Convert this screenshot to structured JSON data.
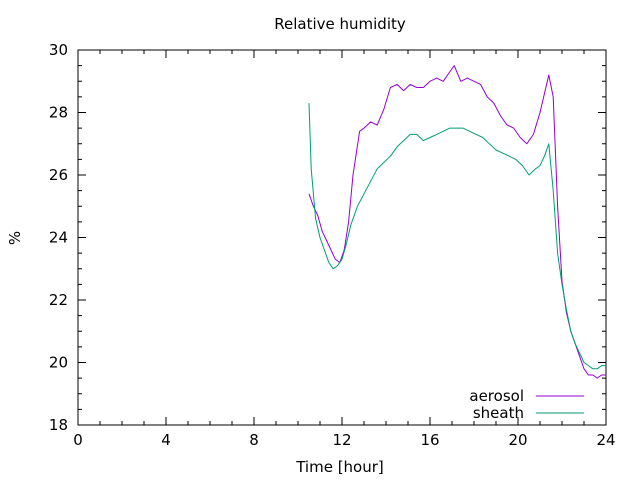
{
  "chart_data": {
    "type": "line",
    "title": "Relative humidity",
    "xlabel": "Time [hour]",
    "ylabel": "%",
    "xlim": [
      0,
      24
    ],
    "ylim": [
      18,
      30
    ],
    "x_ticks": [
      0,
      4,
      8,
      12,
      16,
      20,
      24
    ],
    "y_ticks": [
      18,
      20,
      22,
      24,
      26,
      28,
      30
    ],
    "x_minor_step": 1,
    "y_minor_step": 0.5,
    "grid": false,
    "legend_position": "bottom-right",
    "series": [
      {
        "name": "aerosol",
        "color": "#9400d3",
        "x": [
          10.5,
          10.7,
          10.9,
          11.1,
          11.3,
          11.5,
          11.7,
          11.9,
          12.1,
          12.3,
          12.5,
          12.8,
          13.0,
          13.3,
          13.6,
          13.9,
          14.2,
          14.5,
          14.8,
          15.1,
          15.4,
          15.7,
          16.0,
          16.3,
          16.6,
          16.9,
          17.1,
          17.4,
          17.7,
          18.0,
          18.3,
          18.6,
          18.9,
          19.2,
          19.5,
          19.8,
          20.1,
          20.4,
          20.7,
          21.0,
          21.2,
          21.4,
          21.6,
          21.8,
          22.0,
          22.2,
          22.4,
          22.6,
          22.8,
          23.0,
          23.2,
          23.4,
          23.6,
          23.8,
          24.0
        ],
        "values": [
          25.4,
          25.0,
          24.7,
          24.2,
          23.9,
          23.6,
          23.3,
          23.2,
          23.6,
          24.5,
          26.0,
          27.4,
          27.5,
          27.7,
          27.6,
          28.1,
          28.8,
          28.9,
          28.7,
          28.9,
          28.8,
          28.8,
          29.0,
          29.1,
          29.0,
          29.3,
          29.5,
          29.0,
          29.1,
          29.0,
          28.9,
          28.5,
          28.3,
          27.9,
          27.6,
          27.5,
          27.2,
          27.0,
          27.3,
          28.0,
          28.6,
          29.2,
          28.5,
          25.0,
          22.6,
          21.6,
          21.0,
          20.6,
          20.2,
          19.8,
          19.6,
          19.6,
          19.5,
          19.6,
          19.6
        ]
      },
      {
        "name": "sheath",
        "color": "#009e73",
        "x": [
          10.5,
          10.6,
          10.8,
          11.0,
          11.2,
          11.4,
          11.6,
          11.8,
          12.0,
          12.2,
          12.4,
          12.7,
          13.0,
          13.3,
          13.6,
          13.9,
          14.2,
          14.5,
          14.8,
          15.1,
          15.4,
          15.7,
          16.0,
          16.3,
          16.6,
          16.9,
          17.2,
          17.5,
          17.8,
          18.1,
          18.4,
          18.7,
          19.0,
          19.3,
          19.6,
          19.9,
          20.2,
          20.5,
          20.8,
          21.0,
          21.2,
          21.4,
          21.6,
          21.8,
          22.0,
          22.2,
          22.4,
          22.6,
          22.8,
          23.0,
          23.2,
          23.4,
          23.6,
          23.8,
          24.0
        ],
        "values": [
          28.3,
          26.2,
          24.6,
          24.0,
          23.6,
          23.2,
          23.0,
          23.1,
          23.3,
          23.8,
          24.4,
          25.0,
          25.4,
          25.8,
          26.2,
          26.4,
          26.6,
          26.9,
          27.1,
          27.3,
          27.3,
          27.1,
          27.2,
          27.3,
          27.4,
          27.5,
          27.5,
          27.5,
          27.4,
          27.3,
          27.2,
          27.0,
          26.8,
          26.7,
          26.6,
          26.5,
          26.3,
          26.0,
          26.2,
          26.3,
          26.6,
          27.0,
          25.5,
          23.5,
          22.5,
          21.7,
          21.0,
          20.6,
          20.3,
          20.0,
          19.9,
          19.8,
          19.8,
          19.9,
          19.9
        ]
      }
    ]
  }
}
